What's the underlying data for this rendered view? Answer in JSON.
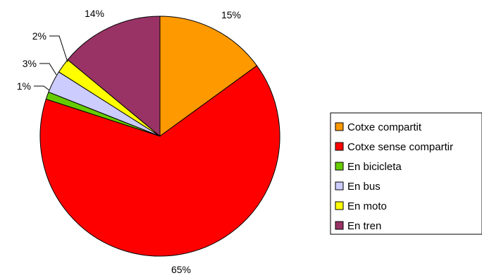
{
  "chart_data": {
    "type": "pie",
    "title": "",
    "slices": [
      {
        "label": "Cotxe compartit",
        "value": 15,
        "display": "15%",
        "color": "#FF9900"
      },
      {
        "label": "Cotxe sense compartir",
        "value": 65,
        "display": "65%",
        "color": "#FF0000"
      },
      {
        "label": "En bicicleta",
        "value": 1,
        "display": "1%",
        "color": "#66CC00"
      },
      {
        "label": "En bus",
        "value": 3,
        "display": "3%",
        "color": "#CCCCFF"
      },
      {
        "label": "En moto",
        "value": 2,
        "display": "2%",
        "color": "#FFFF00"
      },
      {
        "label": "En tren",
        "value": 14,
        "display": "14%",
        "color": "#993366"
      }
    ],
    "legend_position": "right",
    "legend_text_visible": [
      "Cotxe compartit",
      "Cotxe sense compartir",
      "En bicicleta",
      "En bus",
      "En moto",
      "En tren"
    ]
  }
}
